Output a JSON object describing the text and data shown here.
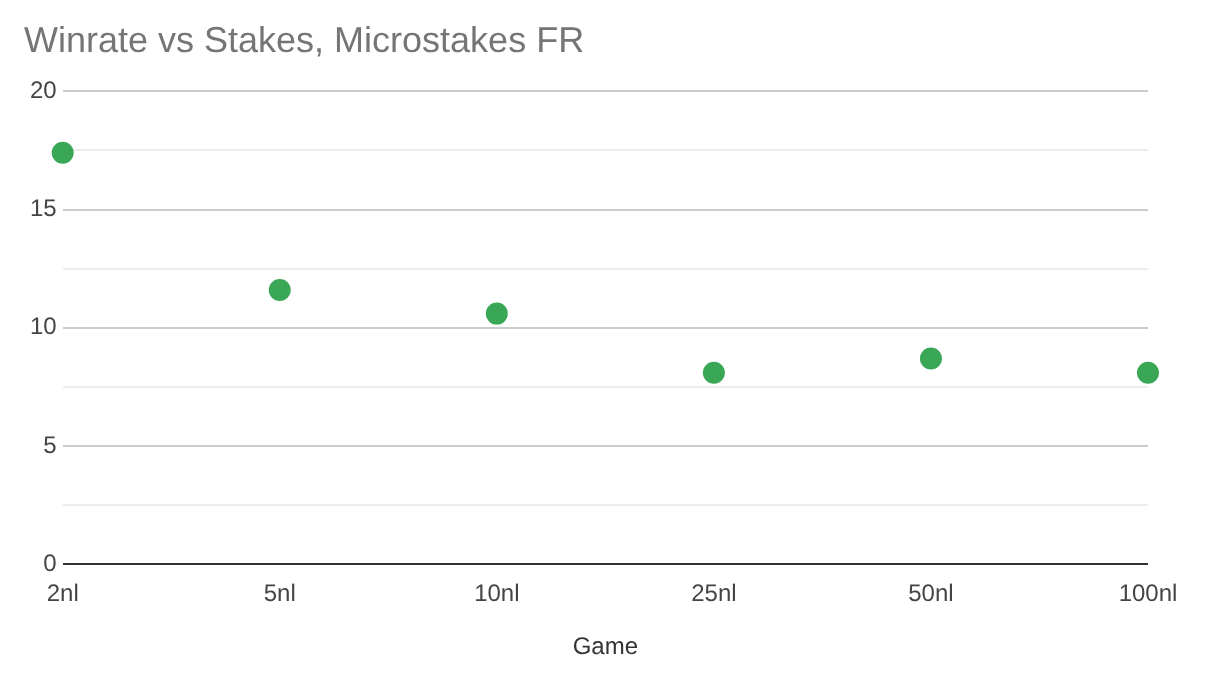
{
  "chart_data": {
    "type": "scatter",
    "title": "Winrate vs Stakes, Microstakes FR",
    "xlabel": "Game",
    "categories": [
      "2nl",
      "5nl",
      "10nl",
      "25nl",
      "50nl",
      "100nl"
    ],
    "series": [
      {
        "color": "#3aa757",
        "values": [
          17.4,
          11.6,
          10.6,
          8.1,
          8.7,
          8.1
        ]
      }
    ],
    "ylim": [
      0,
      20
    ],
    "yticks": [
      0,
      {
        "value": 2.5,
        "label": null
      },
      5,
      {
        "value": 7.5,
        "label": null
      },
      10,
      {
        "value": 12.5,
        "label": null
      },
      15,
      {
        "value": 17.5,
        "label": null
      },
      20
    ],
    "grid": "y",
    "marker": "circle",
    "legend": false
  }
}
